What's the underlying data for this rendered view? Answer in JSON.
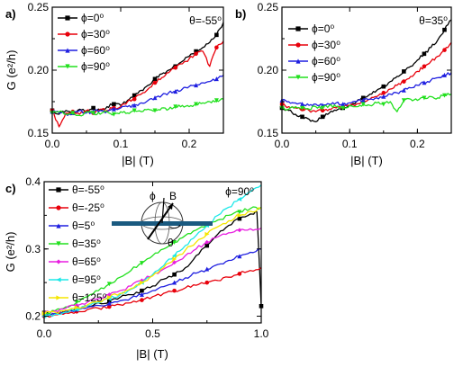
{
  "chart_data": [
    {
      "panel": "a)",
      "type": "line",
      "xlabel": "|B| (T)",
      "ylabel": "G (e²/h)",
      "xlim": [
        0,
        0.25
      ],
      "ylim": [
        0.15,
        0.25
      ],
      "xticks": [
        0,
        0.1,
        0.2
      ],
      "xtick_labels": [
        "0.0",
        "0.1",
        "0.2"
      ],
      "yticks": [
        0.15,
        0.2,
        0.25
      ],
      "ytick_labels": [
        "0.15",
        "0.20",
        "0.25"
      ],
      "annotation": "θ=-55⁰",
      "legend_position": "top-left",
      "series": [
        {
          "name": "ϕ=0⁰",
          "color": "#000000",
          "marker": "square",
          "x": [
            0,
            0.01,
            0.02,
            0.03,
            0.04,
            0.05,
            0.06,
            0.07,
            0.08,
            0.09,
            0.1,
            0.11,
            0.12,
            0.13,
            0.14,
            0.15,
            0.16,
            0.17,
            0.18,
            0.19,
            0.2,
            0.21,
            0.22,
            0.23,
            0.24,
            0.25
          ],
          "y": [
            0.168,
            0.165,
            0.168,
            0.166,
            0.169,
            0.167,
            0.17,
            0.168,
            0.171,
            0.173,
            0.172,
            0.176,
            0.18,
            0.184,
            0.188,
            0.193,
            0.197,
            0.2,
            0.203,
            0.207,
            0.211,
            0.215,
            0.218,
            0.222,
            0.228,
            0.238
          ]
        },
        {
          "name": "ϕ=30⁰",
          "color": "#e8000b",
          "marker": "circle",
          "x": [
            0,
            0.01,
            0.02,
            0.03,
            0.04,
            0.05,
            0.06,
            0.07,
            0.08,
            0.09,
            0.1,
            0.11,
            0.12,
            0.13,
            0.14,
            0.15,
            0.16,
            0.17,
            0.18,
            0.19,
            0.2,
            0.21,
            0.22,
            0.23,
            0.24,
            0.25
          ],
          "y": [
            0.168,
            0.155,
            0.166,
            0.167,
            0.165,
            0.168,
            0.166,
            0.169,
            0.168,
            0.17,
            0.171,
            0.175,
            0.177,
            0.181,
            0.185,
            0.19,
            0.194,
            0.198,
            0.202,
            0.205,
            0.209,
            0.213,
            0.215,
            0.203,
            0.218,
            0.223
          ]
        },
        {
          "name": "ϕ=60⁰",
          "color": "#1f1fe0",
          "marker": "triangle",
          "x": [
            0,
            0.01,
            0.02,
            0.03,
            0.04,
            0.05,
            0.06,
            0.07,
            0.08,
            0.09,
            0.1,
            0.11,
            0.12,
            0.13,
            0.14,
            0.15,
            0.16,
            0.17,
            0.18,
            0.19,
            0.2,
            0.21,
            0.22,
            0.23,
            0.24,
            0.25
          ],
          "y": [
            0.167,
            0.166,
            0.165,
            0.166,
            0.168,
            0.166,
            0.167,
            0.168,
            0.167,
            0.169,
            0.17,
            0.171,
            0.172,
            0.174,
            0.176,
            0.178,
            0.18,
            0.182,
            0.183,
            0.185,
            0.187,
            0.188,
            0.19,
            0.191,
            0.193,
            0.196
          ]
        },
        {
          "name": "ϕ=90⁰",
          "color": "#22e01e",
          "marker": "triangle-down",
          "x": [
            0,
            0.01,
            0.02,
            0.03,
            0.04,
            0.05,
            0.06,
            0.07,
            0.08,
            0.09,
            0.1,
            0.11,
            0.12,
            0.13,
            0.14,
            0.15,
            0.16,
            0.17,
            0.18,
            0.19,
            0.2,
            0.21,
            0.22,
            0.23,
            0.24,
            0.25
          ],
          "y": [
            0.166,
            0.167,
            0.165,
            0.166,
            0.164,
            0.167,
            0.166,
            0.165,
            0.167,
            0.165,
            0.167,
            0.166,
            0.168,
            0.167,
            0.169,
            0.168,
            0.17,
            0.169,
            0.171,
            0.172,
            0.171,
            0.173,
            0.174,
            0.175,
            0.176,
            0.177
          ]
        }
      ]
    },
    {
      "panel": "b)",
      "type": "line",
      "xlabel": "|B| (T)",
      "ylabel": "",
      "xlim": [
        0,
        0.25
      ],
      "ylim": [
        0.15,
        0.25
      ],
      "xticks": [
        0,
        0.1,
        0.2
      ],
      "xtick_labels": [
        "0.0",
        "0.1",
        "0.2"
      ],
      "yticks": [
        0.15,
        0.2,
        0.25
      ],
      "ytick_labels": [
        "0.15",
        "0.20",
        "0.25"
      ],
      "annotation": "θ=35⁰",
      "legend_position": "top-left",
      "series": [
        {
          "name": "ϕ=0⁰",
          "color": "#000000",
          "marker": "square",
          "x": [
            0,
            0.01,
            0.02,
            0.03,
            0.04,
            0.05,
            0.06,
            0.07,
            0.08,
            0.09,
            0.1,
            0.11,
            0.12,
            0.13,
            0.14,
            0.15,
            0.16,
            0.17,
            0.18,
            0.19,
            0.2,
            0.21,
            0.22,
            0.23,
            0.24,
            0.25
          ],
          "y": [
            0.17,
            0.168,
            0.165,
            0.163,
            0.161,
            0.159,
            0.163,
            0.166,
            0.168,
            0.17,
            0.172,
            0.175,
            0.178,
            0.181,
            0.184,
            0.187,
            0.191,
            0.195,
            0.199,
            0.203,
            0.208,
            0.213,
            0.218,
            0.224,
            0.232,
            0.24
          ]
        },
        {
          "name": "ϕ=30⁰",
          "color": "#e8000b",
          "marker": "circle",
          "x": [
            0,
            0.01,
            0.02,
            0.03,
            0.04,
            0.05,
            0.06,
            0.07,
            0.08,
            0.09,
            0.1,
            0.11,
            0.12,
            0.13,
            0.14,
            0.15,
            0.16,
            0.17,
            0.18,
            0.19,
            0.2,
            0.21,
            0.22,
            0.23,
            0.24,
            0.25
          ],
          "y": [
            0.173,
            0.171,
            0.17,
            0.169,
            0.168,
            0.167,
            0.168,
            0.169,
            0.17,
            0.171,
            0.172,
            0.173,
            0.175,
            0.177,
            0.179,
            0.182,
            0.185,
            0.188,
            0.191,
            0.195,
            0.199,
            0.203,
            0.207,
            0.211,
            0.216,
            0.222
          ]
        },
        {
          "name": "ϕ=60⁰",
          "color": "#1f1fe0",
          "marker": "triangle",
          "x": [
            0,
            0.01,
            0.02,
            0.03,
            0.04,
            0.05,
            0.06,
            0.07,
            0.08,
            0.09,
            0.1,
            0.11,
            0.12,
            0.13,
            0.14,
            0.15,
            0.16,
            0.17,
            0.18,
            0.19,
            0.2,
            0.21,
            0.22,
            0.23,
            0.24,
            0.25
          ],
          "y": [
            0.176,
            0.175,
            0.174,
            0.173,
            0.172,
            0.173,
            0.172,
            0.173,
            0.174,
            0.173,
            0.174,
            0.175,
            0.176,
            0.177,
            0.178,
            0.179,
            0.181,
            0.182,
            0.184,
            0.186,
            0.188,
            0.19,
            0.192,
            0.194,
            0.196,
            0.198
          ]
        },
        {
          "name": "ϕ=90⁰",
          "color": "#22e01e",
          "marker": "triangle-down",
          "x": [
            0,
            0.01,
            0.02,
            0.03,
            0.04,
            0.05,
            0.06,
            0.07,
            0.08,
            0.09,
            0.1,
            0.11,
            0.12,
            0.13,
            0.14,
            0.15,
            0.16,
            0.17,
            0.18,
            0.19,
            0.2,
            0.21,
            0.22,
            0.23,
            0.24,
            0.25
          ],
          "y": [
            0.17,
            0.169,
            0.171,
            0.17,
            0.169,
            0.171,
            0.17,
            0.172,
            0.171,
            0.17,
            0.172,
            0.171,
            0.173,
            0.172,
            0.174,
            0.173,
            0.175,
            0.167,
            0.176,
            0.177,
            0.176,
            0.178,
            0.179,
            0.178,
            0.18,
            0.181
          ]
        }
      ]
    },
    {
      "panel": "c)",
      "type": "line",
      "xlabel": "|B| (T)",
      "ylabel": "G (e²/h)",
      "xlim": [
        0,
        1.0
      ],
      "ylim": [
        0.19,
        0.4
      ],
      "xticks": [
        0,
        0.5,
        1.0
      ],
      "xtick_labels": [
        "0.0",
        "0.5",
        "1.0"
      ],
      "yticks": [
        0.2,
        0.3,
        0.4
      ],
      "ytick_labels": [
        "0.2",
        "0.3",
        "0.4"
      ],
      "annotation": "ϕ=90⁰",
      "inset_labels": [
        "ϕ",
        "B",
        "θ"
      ],
      "legend_position": "top-left",
      "series": [
        {
          "name": "θ=-55⁰",
          "color": "#000000",
          "marker": "square",
          "x": [
            0,
            0.05,
            0.1,
            0.15,
            0.2,
            0.25,
            0.3,
            0.35,
            0.4,
            0.45,
            0.5,
            0.55,
            0.6,
            0.65,
            0.7,
            0.75,
            0.8,
            0.85,
            0.9,
            0.95,
            0.98,
            1.0
          ],
          "y": [
            0.205,
            0.203,
            0.208,
            0.212,
            0.215,
            0.22,
            0.222,
            0.228,
            0.232,
            0.238,
            0.245,
            0.255,
            0.262,
            0.272,
            0.29,
            0.305,
            0.322,
            0.335,
            0.345,
            0.352,
            0.355,
            0.215
          ]
        },
        {
          "name": "θ=-25⁰",
          "color": "#e8000b",
          "marker": "circle",
          "x": [
            0,
            0.05,
            0.1,
            0.15,
            0.2,
            0.25,
            0.3,
            0.35,
            0.4,
            0.45,
            0.5,
            0.55,
            0.6,
            0.65,
            0.7,
            0.75,
            0.8,
            0.85,
            0.9,
            0.95,
            1.0
          ],
          "y": [
            0.2,
            0.202,
            0.205,
            0.207,
            0.21,
            0.212,
            0.214,
            0.217,
            0.22,
            0.224,
            0.229,
            0.234,
            0.238,
            0.242,
            0.246,
            0.25,
            0.253,
            0.258,
            0.263,
            0.268,
            0.272
          ]
        },
        {
          "name": "θ=5⁰",
          "color": "#1f1fe0",
          "marker": "triangle",
          "x": [
            0,
            0.05,
            0.1,
            0.15,
            0.2,
            0.25,
            0.3,
            0.35,
            0.4,
            0.45,
            0.5,
            0.55,
            0.6,
            0.65,
            0.7,
            0.75,
            0.8,
            0.85,
            0.9,
            0.95,
            1.0
          ],
          "y": [
            0.202,
            0.204,
            0.207,
            0.21,
            0.213,
            0.216,
            0.219,
            0.223,
            0.227,
            0.232,
            0.238,
            0.244,
            0.25,
            0.257,
            0.264,
            0.27,
            0.277,
            0.283,
            0.289,
            0.295,
            0.3
          ]
        },
        {
          "name": "θ=35⁰",
          "color": "#22e01e",
          "marker": "triangle-down",
          "x": [
            0,
            0.05,
            0.1,
            0.15,
            0.2,
            0.25,
            0.3,
            0.35,
            0.4,
            0.45,
            0.5,
            0.55,
            0.6,
            0.65,
            0.7,
            0.75,
            0.8,
            0.85,
            0.9,
            0.95,
            1.0
          ],
          "y": [
            0.203,
            0.208,
            0.214,
            0.221,
            0.229,
            0.238,
            0.248,
            0.258,
            0.268,
            0.279,
            0.29,
            0.3,
            0.31,
            0.32,
            0.328,
            0.336,
            0.343,
            0.35,
            0.355,
            0.36,
            0.362
          ]
        },
        {
          "name": "θ=65⁰",
          "color": "#e81ee0",
          "marker": "diamond",
          "x": [
            0,
            0.05,
            0.1,
            0.15,
            0.2,
            0.25,
            0.3,
            0.35,
            0.4,
            0.45,
            0.5,
            0.55,
            0.6,
            0.65,
            0.7,
            0.75,
            0.8,
            0.85,
            0.9,
            0.95,
            1.0
          ],
          "y": [
            0.205,
            0.208,
            0.212,
            0.216,
            0.221,
            0.226,
            0.232,
            0.238,
            0.245,
            0.253,
            0.261,
            0.27,
            0.28,
            0.29,
            0.3,
            0.31,
            0.318,
            0.324,
            0.328,
            0.33,
            0.331
          ]
        },
        {
          "name": "θ=95⁰",
          "color": "#1ee8e8",
          "marker": "triangle-left",
          "x": [
            0,
            0.05,
            0.1,
            0.15,
            0.2,
            0.25,
            0.3,
            0.35,
            0.4,
            0.45,
            0.5,
            0.55,
            0.6,
            0.65,
            0.7,
            0.75,
            0.8,
            0.85,
            0.9,
            0.95,
            1.0
          ],
          "y": [
            0.2,
            0.203,
            0.206,
            0.21,
            0.215,
            0.22,
            0.226,
            0.232,
            0.24,
            0.25,
            0.262,
            0.275,
            0.29,
            0.305,
            0.32,
            0.335,
            0.35,
            0.362,
            0.374,
            0.385,
            0.395
          ]
        },
        {
          "name": "θ=125⁰",
          "color": "#f5e600",
          "marker": "triangle-right",
          "x": [
            0,
            0.05,
            0.1,
            0.15,
            0.2,
            0.25,
            0.3,
            0.35,
            0.4,
            0.45,
            0.5,
            0.55,
            0.6,
            0.65,
            0.7,
            0.75,
            0.8,
            0.85,
            0.9,
            0.95,
            1.0
          ],
          "y": [
            0.204,
            0.206,
            0.209,
            0.213,
            0.217,
            0.222,
            0.228,
            0.234,
            0.241,
            0.25,
            0.26,
            0.272,
            0.285,
            0.298,
            0.31,
            0.322,
            0.333,
            0.342,
            0.35,
            0.356,
            0.36
          ]
        }
      ]
    }
  ]
}
